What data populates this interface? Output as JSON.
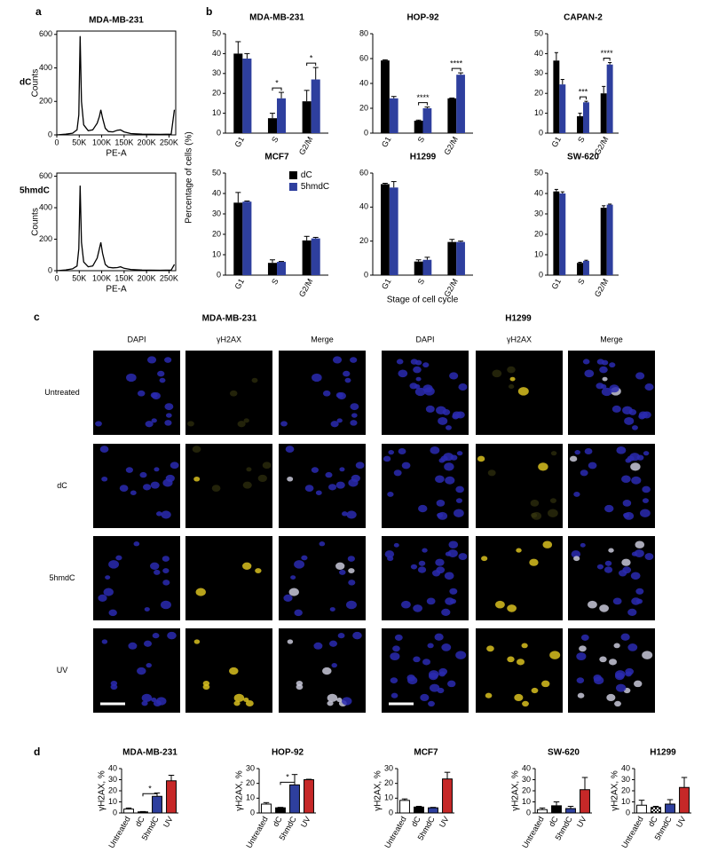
{
  "panels": [
    "a",
    "b",
    "c",
    "d"
  ],
  "panel_b": {
    "ylabel": "Percentage of cells (%)",
    "xlabel": "Stage of cell cycle"
  },
  "microscopy": {
    "groups": [
      {
        "title": "MDA-MB-231",
        "columns": [
          "DAPI",
          "γH2AX",
          "Merge"
        ]
      },
      {
        "title": "H1299",
        "columns": [
          "DAPI",
          "γH2AX",
          "Merge"
        ]
      }
    ],
    "rows": [
      "Untreated",
      "dC",
      "5hmdC",
      "UV"
    ]
  },
  "chart_data": [
    {
      "type": "line",
      "title": "MDA-MB-231",
      "label": "dC",
      "ylabel": "Counts",
      "xlabel": "PE-A",
      "color": "#000000",
      "x": [
        0,
        20000,
        35000,
        45000,
        49000,
        52000,
        55000,
        60000,
        70000,
        80000,
        90000,
        95000,
        98000,
        102000,
        108000,
        115000,
        125000,
        135000,
        142000,
        150000,
        165000,
        190000,
        230000,
        255000,
        262000
      ],
      "values": [
        0,
        5,
        10,
        30,
        120,
        590,
        200,
        60,
        25,
        30,
        70,
        110,
        150,
        100,
        40,
        20,
        18,
        28,
        30,
        18,
        8,
        4,
        3,
        5,
        150
      ],
      "xlim": [
        0,
        265000
      ],
      "ylim": [
        0,
        620
      ],
      "xticks": [
        0,
        {
          "value": 50000,
          "label": "50K"
        },
        {
          "value": 100000,
          "label": "100K"
        },
        {
          "value": 150000,
          "label": "150K"
        },
        {
          "value": 200000,
          "label": "200K"
        },
        {
          "value": 250000,
          "label": "250K"
        }
      ],
      "yticks": [
        0,
        200,
        400,
        600
      ]
    },
    {
      "type": "line",
      "label": "5hmdC",
      "ylabel": "Counts",
      "xlabel": "PE-A",
      "color": "#000000",
      "x": [
        0,
        20000,
        35000,
        45000,
        49000,
        52000,
        55000,
        60000,
        70000,
        80000,
        90000,
        95000,
        98000,
        102000,
        108000,
        115000,
        125000,
        135000,
        142000,
        150000,
        165000,
        190000,
        230000,
        255000,
        262000
      ],
      "values": [
        0,
        5,
        12,
        30,
        140,
        540,
        180,
        55,
        25,
        30,
        80,
        140,
        180,
        110,
        40,
        22,
        18,
        20,
        25,
        15,
        8,
        4,
        3,
        4,
        40
      ],
      "xlim": [
        0,
        265000
      ],
      "ylim": [
        0,
        620
      ],
      "xticks": [
        0,
        {
          "value": 50000,
          "label": "50K"
        },
        {
          "value": 100000,
          "label": "100K"
        },
        {
          "value": 150000,
          "label": "150K"
        },
        {
          "value": 200000,
          "label": "200K"
        },
        {
          "value": 250000,
          "label": "250K"
        }
      ],
      "yticks": [
        0,
        200,
        400,
        600
      ]
    },
    {
      "type": "bar",
      "title": "MDA-MB-231",
      "categories": [
        "G1",
        "S",
        "G2/M"
      ],
      "ylim": [
        0,
        50
      ],
      "yticks": [
        0,
        10,
        20,
        30,
        40,
        50
      ],
      "significance": [
        null,
        "*",
        "*"
      ],
      "series": [
        {
          "name": "dC",
          "color": "#000000",
          "values": [
            40,
            7.5,
            16
          ],
          "errors": [
            6,
            2.5,
            5.5
          ]
        },
        {
          "name": "5hmdC",
          "color": "#2e3f9e",
          "values": [
            37.5,
            17.5,
            27
          ],
          "errors": [
            2.5,
            3,
            6
          ]
        }
      ]
    },
    {
      "type": "bar",
      "title": "HOP-92",
      "categories": [
        "G1",
        "S",
        "G2/M"
      ],
      "ylim": [
        0,
        80
      ],
      "yticks": [
        0,
        20,
        40,
        60,
        80
      ],
      "significance": [
        null,
        "****",
        "****"
      ],
      "series": [
        {
          "name": "dC",
          "color": "#000000",
          "values": [
            58.5,
            10,
            28
          ],
          "errors": [
            0.5,
            0.5,
            0.3
          ]
        },
        {
          "name": "5hmdC",
          "color": "#2e3f9e",
          "values": [
            28,
            20,
            47
          ],
          "errors": [
            1.5,
            1,
            1.5
          ]
        }
      ]
    },
    {
      "type": "bar",
      "title": "CAPAN-2",
      "categories": [
        "G1",
        "S",
        "G2/M"
      ],
      "ylim": [
        0,
        50
      ],
      "yticks": [
        0,
        10,
        20,
        30,
        40,
        50
      ],
      "significance": [
        null,
        "***",
        "****"
      ],
      "series": [
        {
          "name": "dC",
          "color": "#000000",
          "values": [
            36.5,
            8.5,
            20
          ],
          "errors": [
            4,
            1.5,
            3.5
          ]
        },
        {
          "name": "5hmdC",
          "color": "#2e3f9e",
          "values": [
            24.5,
            15.5,
            34.5
          ],
          "errors": [
            2.5,
            0.5,
            1
          ]
        }
      ]
    },
    {
      "type": "bar",
      "title": "MCF7",
      "categories": [
        "G1",
        "S",
        "G2/M"
      ],
      "ylim": [
        0,
        50
      ],
      "yticks": [
        0,
        10,
        20,
        30,
        40,
        50
      ],
      "legend": "upper right",
      "series": [
        {
          "name": "dC",
          "color": "#000000",
          "values": [
            35.5,
            6,
            17
          ],
          "errors": [
            5,
            1.5,
            2
          ]
        },
        {
          "name": "5hmdC",
          "color": "#2e3f9e",
          "values": [
            36,
            6.5,
            18
          ],
          "errors": [
            0.3,
            0.2,
            0.5
          ]
        }
      ]
    },
    {
      "type": "bar",
      "title": "H1299",
      "categories": [
        "G1",
        "S",
        "G2/M"
      ],
      "ylim": [
        0,
        60
      ],
      "yticks": [
        0,
        20,
        40,
        60
      ],
      "series": [
        {
          "name": "dC",
          "color": "#000000",
          "values": [
            53.5,
            8,
            19.5
          ],
          "errors": [
            0.5,
            1,
            1.5
          ]
        },
        {
          "name": "5hmdC",
          "color": "#2e3f9e",
          "values": [
            51.5,
            9,
            19.5
          ],
          "errors": [
            3.5,
            1.5,
            0.5
          ]
        }
      ]
    },
    {
      "type": "bar",
      "title": "SW-620",
      "categories": [
        "G1",
        "S",
        "G2/M"
      ],
      "ylim": [
        0,
        50
      ],
      "yticks": [
        0,
        10,
        20,
        30,
        40,
        50
      ],
      "series": [
        {
          "name": "dC",
          "color": "#000000",
          "values": [
            41,
            6,
            33
          ],
          "errors": [
            1,
            0.3,
            1
          ]
        },
        {
          "name": "5hmdC",
          "color": "#2e3f9e",
          "values": [
            40,
            7,
            34.5
          ],
          "errors": [
            0.8,
            0.3,
            0.3
          ]
        }
      ]
    },
    {
      "type": "bar",
      "title": "MDA-MB-231",
      "ylabel": "γH2AX, %",
      "categories": [
        "Untreated",
        "dC",
        "5hmdC",
        "UV"
      ],
      "colors": [
        "#ffffff",
        "#000000",
        "#2e3f9e",
        "#c62828"
      ],
      "values": [
        3.5,
        1,
        15,
        29
      ],
      "errors": [
        1,
        0.3,
        3,
        5
      ],
      "ylim": [
        0,
        40
      ],
      "yticks": [
        0,
        10,
        20,
        30,
        40
      ],
      "significance": [
        null,
        null,
        "*",
        null
      ]
    },
    {
      "type": "bar",
      "title": "HOP-92",
      "ylabel": "γH2AX, %",
      "categories": [
        "Untreated",
        "dC",
        "5hmdC",
        "UV"
      ],
      "colors": [
        "#ffffff",
        "#000000",
        "#2e3f9e",
        "#c62828"
      ],
      "values": [
        6,
        3.5,
        19,
        22.5
      ],
      "errors": [
        1,
        0.3,
        7,
        0.3
      ],
      "ylim": [
        0,
        30
      ],
      "yticks": [
        0,
        10,
        20,
        30
      ],
      "significance": [
        null,
        null,
        "*",
        null
      ]
    },
    {
      "type": "bar",
      "title": "MCF7",
      "ylabel": "γH2AX, %",
      "categories": [
        "Untreated",
        "dC",
        "5hmdC",
        "UV"
      ],
      "colors": [
        "#ffffff",
        "#000000",
        "#2e3f9e",
        "#c62828"
      ],
      "values": [
        8.5,
        4,
        3.5,
        23
      ],
      "errors": [
        1,
        0.5,
        0.3,
        4.5
      ],
      "ylim": [
        0,
        30
      ],
      "yticks": [
        0,
        10,
        20,
        30
      ]
    },
    {
      "type": "bar",
      "title": "SW-620",
      "ylabel": "γH2AX, %",
      "categories": [
        "Untreated",
        "dC",
        "5hmdC",
        "UV"
      ],
      "colors": [
        "#ffffff",
        "#000000",
        "#2e3f9e",
        "#c62828"
      ],
      "values": [
        3,
        6.5,
        4,
        21
      ],
      "errors": [
        1.5,
        3.5,
        2,
        11
      ],
      "ylim": [
        0,
        40
      ],
      "yticks": [
        0,
        10,
        20,
        30,
        40
      ]
    },
    {
      "type": "bar",
      "title": "H1299",
      "ylabel": "γH2AX, %",
      "categories": [
        "Untreated",
        "dC",
        "5hmdC",
        "UV"
      ],
      "colors": [
        "#ffffff",
        "#000000",
        "#2e3f9e",
        "#c62828"
      ],
      "hatch": [
        false,
        true,
        false,
        false
      ],
      "values": [
        7,
        5,
        8,
        23
      ],
      "errors": [
        4.5,
        1,
        4,
        9
      ],
      "ylim": [
        0,
        40
      ],
      "yticks": [
        0,
        10,
        20,
        30,
        40
      ]
    }
  ]
}
